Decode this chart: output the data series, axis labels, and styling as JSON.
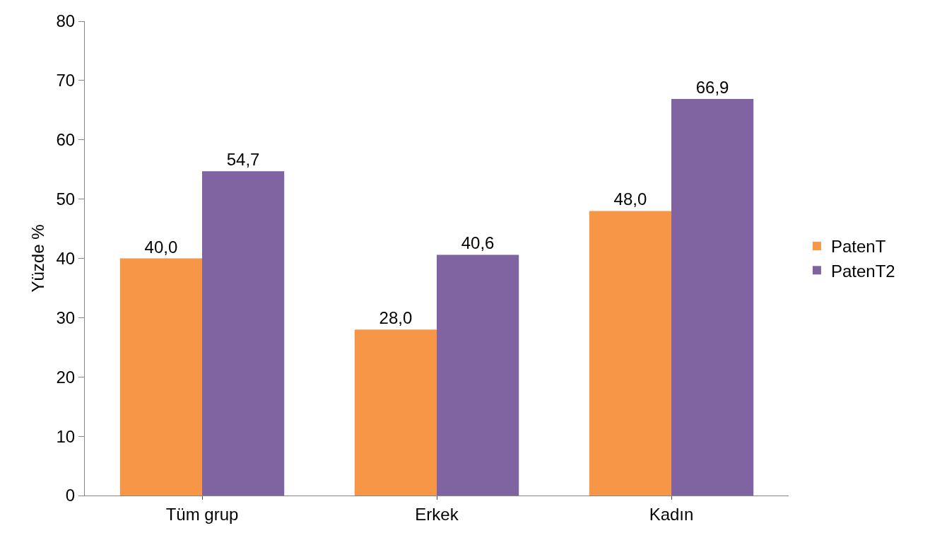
{
  "chart_data": {
    "type": "bar",
    "ylabel": "Yüzde %",
    "categories": [
      "Tüm grup",
      "Erkek",
      "Kadın"
    ],
    "series": [
      {
        "name": "PatenT",
        "color": "#f79646",
        "values": [
          40.0,
          28.0,
          48.0
        ],
        "value_labels": [
          "40,0",
          "28,0",
          "48,0"
        ]
      },
      {
        "name": "PatenT2",
        "color": "#8064a2",
        "values": [
          54.7,
          40.6,
          66.9
        ],
        "value_labels": [
          "54,7",
          "40,6",
          "66,9"
        ]
      }
    ],
    "ylim": [
      0,
      80
    ],
    "yticks": [
      0,
      10,
      20,
      30,
      40,
      50,
      60,
      70,
      80
    ],
    "grid": false,
    "legend": "right"
  }
}
